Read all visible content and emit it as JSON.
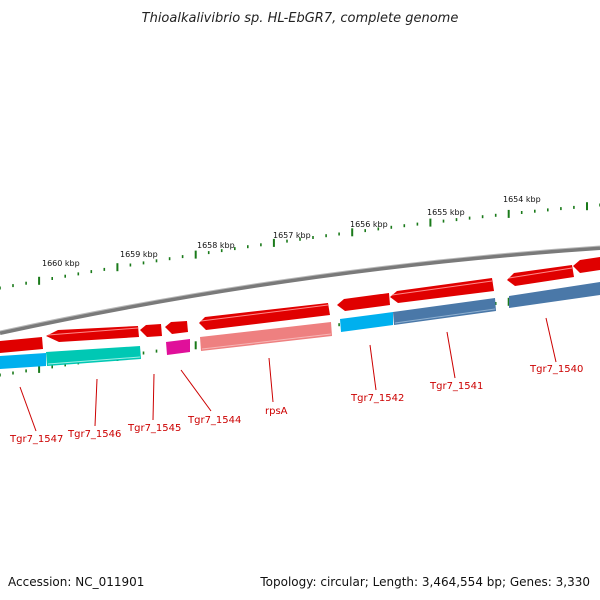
{
  "title": "Thioalkalivibrio sp. HL-EbGR7, complete genome",
  "footer": {
    "accession": "Accession: NC_011901",
    "topology": "Topology: circular; Length: 3,464,554 bp; Genes: 3,330"
  },
  "scale_labels": [
    "1660 kbp",
    "1659 kbp",
    "1658 kbp",
    "1657 kbp",
    "1656 kbp",
    "1655 kbp",
    "1654 kbp"
  ],
  "genes": [
    {
      "label": "Tgr7_1547",
      "strand": "minus",
      "color": "#e00000"
    },
    {
      "label": "Tgr7_1546",
      "strand": "minus",
      "color": "#e00000"
    },
    {
      "label": "Tgr7_1545",
      "strand": "minus",
      "color": "#e00000"
    },
    {
      "label": "Tgr7_1544",
      "strand": "minus",
      "color": "#e00000"
    },
    {
      "label": "rpsA",
      "strand": "minus",
      "color": "#e00000"
    },
    {
      "label": "Tgr7_1542",
      "strand": "minus",
      "color": "#e00000"
    },
    {
      "label": "Tgr7_1541",
      "strand": "minus",
      "color": "#e00000"
    },
    {
      "label": "Tgr7_1540",
      "strand": "minus",
      "color": "#e00000"
    }
  ],
  "colors": {
    "cds": "#e00000",
    "backbone": "#808080",
    "tick": "#1a7a1a",
    "label": "#cc0000",
    "cyan": "#00b0ee",
    "teal": "#00c8b4",
    "magenta": "#e0109a",
    "salmon": "#ee8080",
    "steelblue": "#4a78a8"
  }
}
